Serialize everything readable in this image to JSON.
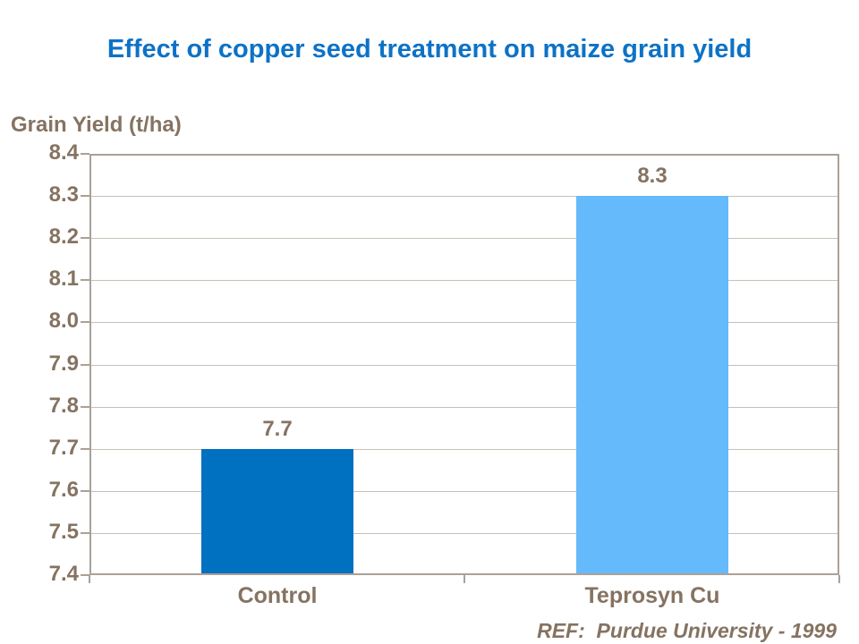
{
  "slide": {
    "title": "Effect of copper seed treatment on maize grain yield",
    "footer_ref": "REF:  Purdue University - 1999"
  },
  "colors": {
    "title_blue": "#0d72c6",
    "text_brown": "#857361",
    "grid_line": "#c9c0b6",
    "plot_border": "#aba197",
    "bar_control": "#0070c0",
    "bar_teprosyn": "#64bafa"
  },
  "chart_data": {
    "type": "bar",
    "title": "Effect of copper seed treatment on maize grain yield",
    "xlabel": "",
    "ylabel": "Grain Yield (t/ha)",
    "categories": [
      "Control",
      "Teprosyn Cu"
    ],
    "values": [
      7.7,
      8.3
    ],
    "value_labels": [
      "7.7",
      "8.3"
    ],
    "bar_colors": [
      "#0070c0",
      "#64bafa"
    ],
    "ylim": [
      7.4,
      8.4
    ],
    "ytick_step": 0.1,
    "yticks": [
      8.4,
      8.3,
      8.2,
      8.1,
      8.0,
      7.9,
      7.8,
      7.7,
      7.6,
      7.5,
      7.4
    ],
    "ytick_labels": [
      "8.4",
      "8.3",
      "8.2",
      "8.1",
      "8.0",
      "7.9",
      "7.8",
      "7.7",
      "7.6",
      "7.5",
      "7.4"
    ],
    "grid": true,
    "legend": false,
    "annotation": "REF:  Purdue University - 1999"
  }
}
